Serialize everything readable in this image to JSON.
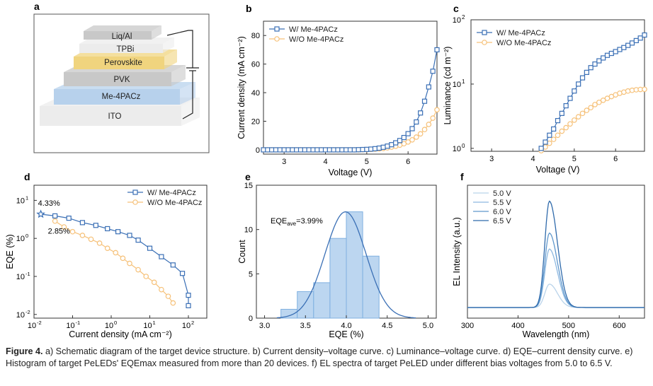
{
  "panels": {
    "a": "a",
    "b": "b",
    "c": "c",
    "d": "d",
    "e": "e",
    "f": "f"
  },
  "device_layers": [
    "Liq/Al",
    "TPBi",
    "Perovskite",
    "PVK",
    "Me-4PACz",
    "ITO"
  ],
  "colors": {
    "with": "#3a6fb5",
    "without": "#f6c179",
    "hist_fill": "#bcd6f0",
    "hist_edge": "#7fb0e0",
    "layer_gray": "#c8c8c8",
    "layer_yellow": "#f0d47e",
    "layer_blue": "#b7d1ec",
    "layer_ito": "#ececec"
  },
  "caption": {
    "label": "Figure 4.",
    "text": "a) Schematic diagram of the target device structure. b) Current density–voltage curve. c) Luminance–voltage curve. d) EQE–current density curve. e) Histogram of target PeLEDs' EQEmax measured from more than 20 devices. f) EL spectra of target PeLED under different bias voltages from 5.0 to 6.5 V."
  },
  "chart_data": [
    {
      "panel": "b",
      "type": "line",
      "xlabel": "Voltage (V)",
      "ylabel": "Current density (mA cm⁻²)",
      "xlim": [
        2.5,
        6.7
      ],
      "ylim": [
        -3,
        90
      ],
      "xticks": [
        3,
        4,
        5,
        6
      ],
      "yticks": [
        0,
        20,
        40,
        60,
        80
      ],
      "legend": "top-left",
      "series": [
        {
          "name": "W/ Me-4PACz",
          "marker": "square",
          "x": [
            2.5,
            2.6,
            2.7,
            2.8,
            2.9,
            3.0,
            3.1,
            3.2,
            3.3,
            3.4,
            3.5,
            3.6,
            3.7,
            3.8,
            3.9,
            4.0,
            4.1,
            4.2,
            4.3,
            4.4,
            4.5,
            4.6,
            4.7,
            4.8,
            4.9,
            5.0,
            5.1,
            5.2,
            5.3,
            5.4,
            5.5,
            5.6,
            5.7,
            5.8,
            5.9,
            6.0,
            6.1,
            6.2,
            6.3,
            6.4,
            6.5,
            6.6,
            6.7
          ],
          "y": [
            0,
            0,
            0,
            0,
            0,
            0,
            0,
            0,
            0,
            0,
            0,
            0,
            0,
            0,
            0,
            0,
            0,
            0,
            0,
            0,
            0,
            0,
            0,
            0.1,
            0.2,
            0.3,
            0.5,
            0.8,
            1.2,
            1.8,
            2.6,
            3.6,
            4.9,
            6.5,
            8.6,
            11.3,
            14.8,
            19.5,
            25.8,
            34,
            44,
            55,
            70
          ]
        },
        {
          "name": "W/O Me-4PACz",
          "marker": "circle",
          "x": [
            2.5,
            2.6,
            2.7,
            2.8,
            2.9,
            3.0,
            3.1,
            3.2,
            3.3,
            3.4,
            3.5,
            3.6,
            3.7,
            3.8,
            3.9,
            4.0,
            4.1,
            4.2,
            4.3,
            4.4,
            4.5,
            4.6,
            4.7,
            4.8,
            4.9,
            5.0,
            5.1,
            5.2,
            5.3,
            5.4,
            5.5,
            5.6,
            5.7,
            5.8,
            5.9,
            6.0,
            6.1,
            6.2,
            6.3,
            6.4,
            6.5,
            6.6,
            6.7
          ],
          "y": [
            0,
            0,
            0,
            0,
            0,
            0,
            0,
            0,
            0,
            0,
            0,
            0,
            0,
            0,
            0,
            0,
            0,
            0,
            0,
            0,
            0,
            0,
            0,
            0,
            0.1,
            0.2,
            0.3,
            0.5,
            0.7,
            1.0,
            1.4,
            1.9,
            2.5,
            3.3,
            4.3,
            5.5,
            7.0,
            8.9,
            11.2,
            14.2,
            17.8,
            22.2,
            28
          ]
        }
      ]
    },
    {
      "panel": "c",
      "type": "line",
      "xlabel": "Voltage (V)",
      "ylabel": "Luminance (cd m⁻²)",
      "scale_y": "log",
      "xlim": [
        2.5,
        6.7
      ],
      "ylim": [
        0.9,
        100
      ],
      "xticks": [
        3,
        4,
        5,
        6
      ],
      "yticks": [
        1,
        10,
        100
      ],
      "legend": "top-left",
      "series": [
        {
          "name": "W/ Me-4PACz",
          "marker": "square",
          "x": [
            4.2,
            4.3,
            4.4,
            4.5,
            4.6,
            4.7,
            4.8,
            4.9,
            5.0,
            5.1,
            5.2,
            5.3,
            5.4,
            5.5,
            5.6,
            5.7,
            5.8,
            5.9,
            6.0,
            6.1,
            6.2,
            6.3,
            6.4,
            6.5,
            6.6,
            6.7
          ],
          "y": [
            1.0,
            1.25,
            1.6,
            2.0,
            2.7,
            3.5,
            4.6,
            6.0,
            7.8,
            10.0,
            12.5,
            15.2,
            18.0,
            20.5,
            23.0,
            25.5,
            28.0,
            30.0,
            32.0,
            34.5,
            37.0,
            40.0,
            43.5,
            47.5,
            52.0,
            58.0
          ]
        },
        {
          "name": "W/O Me-4PACz",
          "marker": "circle",
          "x": [
            4.2,
            4.3,
            4.4,
            4.5,
            4.6,
            4.7,
            4.8,
            4.9,
            5.0,
            5.1,
            5.2,
            5.3,
            5.4,
            5.5,
            5.6,
            5.7,
            5.8,
            5.9,
            6.0,
            6.1,
            6.2,
            6.3,
            6.4,
            6.5,
            6.6,
            6.7
          ],
          "y": [
            0.92,
            1.05,
            1.2,
            1.38,
            1.6,
            1.85,
            2.1,
            2.4,
            2.75,
            3.1,
            3.5,
            3.9,
            4.3,
            4.8,
            5.2,
            5.6,
            6.0,
            6.4,
            6.8,
            7.2,
            7.5,
            7.8,
            8.0,
            8.15,
            8.25,
            8.3
          ]
        }
      ]
    },
    {
      "panel": "d",
      "type": "line",
      "xlabel": "Current density (mA cm⁻²)",
      "ylabel": "EQE (%)",
      "scale_x": "log",
      "scale_y": "log",
      "xlim": [
        0.01,
        300
      ],
      "ylim": [
        0.008,
        25
      ],
      "xticks": [
        0.01,
        0.1,
        1,
        10,
        100
      ],
      "xtick_labels": [
        "10⁻²",
        "10⁻¹",
        "10⁰",
        "10¹",
        "10²"
      ],
      "yticks": [
        0.01,
        0.1,
        1,
        10
      ],
      "ytick_labels": [
        "10⁻²",
        "10⁻¹",
        "10⁰",
        "10¹"
      ],
      "legend": "top-right",
      "annotations": [
        "4.33%",
        "2.85%"
      ],
      "series": [
        {
          "name": "W/ Me-4PACz",
          "marker": "square",
          "x": [
            0.015,
            0.035,
            0.08,
            0.18,
            0.4,
            0.8,
            1.5,
            3,
            5,
            10,
            20,
            40,
            70,
            100,
            100
          ],
          "y": [
            4.33,
            3.9,
            3.4,
            2.6,
            2.2,
            1.8,
            1.5,
            1.2,
            0.9,
            0.55,
            0.33,
            0.2,
            0.12,
            0.032,
            0.017
          ]
        },
        {
          "name": "W/O Me-4PACz",
          "marker": "circle",
          "x": [
            0.035,
            0.06,
            0.1,
            0.18,
            0.3,
            0.5,
            0.8,
            1.3,
            2,
            3,
            5,
            8,
            13,
            20,
            30,
            40
          ],
          "y": [
            2.85,
            2.0,
            1.5,
            1.2,
            0.95,
            0.75,
            0.55,
            0.42,
            0.3,
            0.22,
            0.15,
            0.1,
            0.07,
            0.045,
            0.03,
            0.02
          ]
        }
      ]
    },
    {
      "panel": "e",
      "type": "bar",
      "xlabel": "EQE (%)",
      "ylabel": "Count",
      "xlim": [
        2.9,
        5.1
      ],
      "ylim": [
        0,
        15
      ],
      "xticks": [
        3.0,
        3.5,
        4.0,
        4.5,
        5.0
      ],
      "yticks": [
        0,
        5,
        10,
        15
      ],
      "bin_edges": [
        3.2,
        3.4,
        3.6,
        3.8,
        4.0,
        4.2,
        4.4
      ],
      "values": [
        1,
        3,
        4,
        9,
        12,
        7
      ],
      "annotation": {
        "main": "EQE",
        "sub": "ave",
        "value": "=3.99%"
      },
      "fit": {
        "type": "gaussian",
        "mean": 3.99,
        "sd": 0.25,
        "peak": 12
      }
    },
    {
      "panel": "f",
      "type": "line",
      "xlabel": "Wavelength (nm)",
      "ylabel": "EL Intensity (a.u.)",
      "xlim": [
        300,
        650
      ],
      "ylim": [
        0,
        1.15
      ],
      "xticks": [
        300,
        400,
        500,
        600
      ],
      "legend": "top-left",
      "peak_nm": 462,
      "series": [
        {
          "name": "5.0 V",
          "color": "#b9d3ea",
          "peak": 0.22
        },
        {
          "name": "5.5 V",
          "color": "#8db8e0",
          "peak": 0.55
        },
        {
          "name": "6.0 V",
          "color": "#5f97cc",
          "peak": 0.7
        },
        {
          "name": "6.5 V",
          "color": "#2f6aab",
          "peak": 1.0
        }
      ]
    }
  ]
}
